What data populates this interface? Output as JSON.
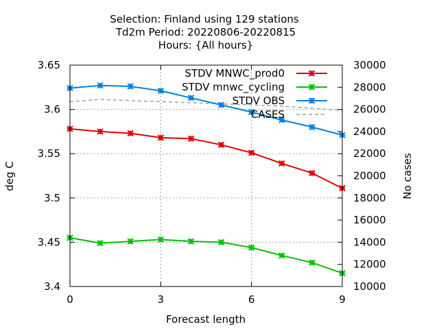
{
  "chart_data": {
    "type": "line",
    "title_lines": [
      "Selection: Finland using   129 stations",
      "Td2m   Period: 20220806-20220815",
      "Hours: {All hours}"
    ],
    "xlabel": "Forecast length",
    "ylabel": "deg C",
    "y2label": "No cases",
    "x": [
      0,
      1,
      2,
      3,
      4,
      5,
      6,
      7,
      8,
      9
    ],
    "xlim": [
      0,
      9
    ],
    "ylim": [
      3.4,
      3.65
    ],
    "y2lim": [
      10000,
      30000
    ],
    "xticks": [
      "0",
      "3",
      "6",
      "9"
    ],
    "yticks": [
      "3.4",
      "3.45",
      "3.5",
      "3.55",
      "3.6",
      "3.65"
    ],
    "y2ticks": [
      "10000",
      "12000",
      "14000",
      "16000",
      "18000",
      "20000",
      "22000",
      "24000",
      "26000",
      "28000",
      "30000"
    ],
    "grid": true,
    "legend_position": "top-right",
    "series": [
      {
        "name": "STDV MNWC_prod0",
        "color": "#e00000",
        "marker": "x",
        "axis": "left",
        "values": [
          3.578,
          3.575,
          3.573,
          3.568,
          3.567,
          3.56,
          3.551,
          3.539,
          3.528,
          3.511
        ]
      },
      {
        "name": "STDV mnwc_cycling",
        "color": "#00c000",
        "marker": "x",
        "axis": "left",
        "values": [
          3.455,
          3.449,
          3.451,
          3.453,
          3.451,
          3.45,
          3.444,
          3.435,
          3.427,
          3.415
        ]
      },
      {
        "name": "STDV OBS",
        "color": "#0080e0",
        "marker": "x",
        "axis": "left",
        "values": [
          3.624,
          3.627,
          3.626,
          3.621,
          3.613,
          3.605,
          3.597,
          3.588,
          3.58,
          3.571
        ]
      },
      {
        "name": "CASES",
        "color": "#a0a0a0",
        "marker": "none",
        "dashed": true,
        "axis": "right",
        "values": [
          26700,
          26900,
          26800,
          26700,
          26600,
          26500,
          26400,
          26300,
          26100,
          25900
        ]
      }
    ]
  }
}
